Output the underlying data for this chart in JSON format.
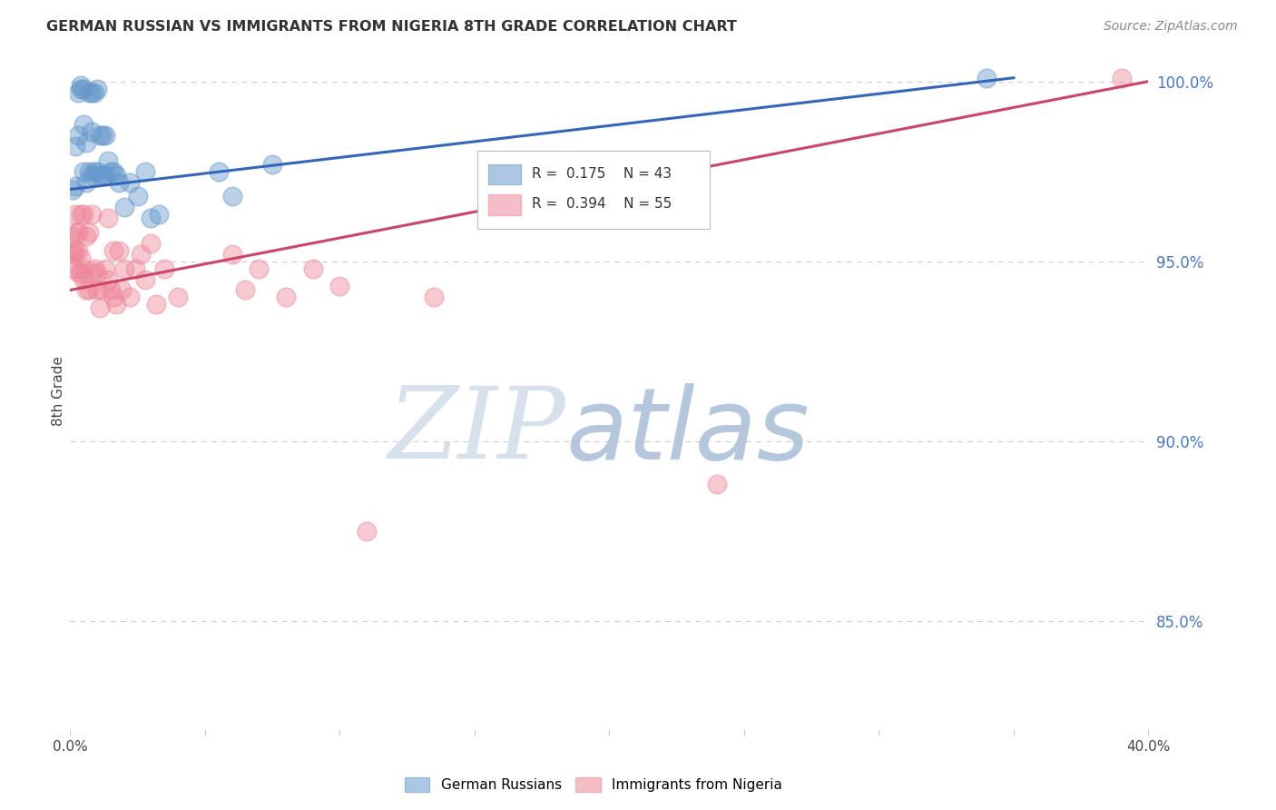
{
  "title": "GERMAN RUSSIAN VS IMMIGRANTS FROM NIGERIA 8TH GRADE CORRELATION CHART",
  "source": "Source: ZipAtlas.com",
  "ylabel": "8th Grade",
  "xlim": [
    0.0,
    0.4
  ],
  "ylim": [
    0.82,
    1.008
  ],
  "xticks": [
    0.0,
    0.05,
    0.1,
    0.15,
    0.2,
    0.25,
    0.3,
    0.35,
    0.4
  ],
  "xticklabels": [
    "0.0%",
    "",
    "",
    "",
    "",
    "",
    "",
    "",
    "40.0%"
  ],
  "yticks_right": [
    0.85,
    0.9,
    0.95,
    1.0
  ],
  "yticklabels_right": [
    "85.0%",
    "90.0%",
    "95.0%",
    "100.0%"
  ],
  "blue_R": 0.175,
  "blue_N": 43,
  "pink_R": 0.394,
  "pink_N": 55,
  "blue_color": "#6699CC",
  "pink_color": "#EE8899",
  "blue_line_color": "#3366BB",
  "pink_line_color": "#CC4466",
  "legend1": "German Russians",
  "legend2": "Immigrants from Nigeria",
  "blue_line_x0": 0.0,
  "blue_line_y0": 0.97,
  "blue_line_x1": 0.35,
  "blue_line_y1": 1.001,
  "pink_line_x0": 0.0,
  "pink_line_y0": 0.942,
  "pink_line_x1": 0.4,
  "pink_line_y1": 1.0,
  "blue_scatter_x": [
    0.001,
    0.002,
    0.002,
    0.003,
    0.003,
    0.004,
    0.004,
    0.005,
    0.005,
    0.005,
    0.006,
    0.006,
    0.007,
    0.007,
    0.008,
    0.008,
    0.008,
    0.009,
    0.009,
    0.01,
    0.01,
    0.011,
    0.011,
    0.012,
    0.012,
    0.013,
    0.013,
    0.014,
    0.015,
    0.016,
    0.017,
    0.018,
    0.02,
    0.022,
    0.025,
    0.028,
    0.03,
    0.033,
    0.055,
    0.06,
    0.075,
    0.17,
    0.34
  ],
  "blue_scatter_y": [
    0.97,
    0.971,
    0.982,
    0.985,
    0.997,
    0.998,
    0.999,
    0.998,
    0.988,
    0.975,
    0.972,
    0.983,
    0.997,
    0.975,
    0.997,
    0.986,
    0.974,
    0.997,
    0.975,
    0.998,
    0.975,
    0.974,
    0.985,
    0.974,
    0.985,
    0.974,
    0.985,
    0.978,
    0.975,
    0.975,
    0.974,
    0.972,
    0.965,
    0.972,
    0.968,
    0.975,
    0.962,
    0.963,
    0.975,
    0.968,
    0.977,
    0.963,
    1.001
  ],
  "pink_scatter_x": [
    0.001,
    0.001,
    0.001,
    0.002,
    0.002,
    0.002,
    0.002,
    0.003,
    0.003,
    0.003,
    0.004,
    0.004,
    0.004,
    0.005,
    0.005,
    0.005,
    0.006,
    0.006,
    0.007,
    0.007,
    0.008,
    0.008,
    0.009,
    0.01,
    0.01,
    0.011,
    0.012,
    0.013,
    0.014,
    0.014,
    0.015,
    0.016,
    0.016,
    0.017,
    0.018,
    0.019,
    0.02,
    0.022,
    0.024,
    0.026,
    0.028,
    0.03,
    0.032,
    0.035,
    0.04,
    0.06,
    0.065,
    0.07,
    0.08,
    0.09,
    0.1,
    0.11,
    0.135,
    0.24,
    0.39
  ],
  "pink_scatter_y": [
    0.952,
    0.953,
    0.957,
    0.948,
    0.953,
    0.958,
    0.963,
    0.947,
    0.953,
    0.958,
    0.947,
    0.951,
    0.963,
    0.945,
    0.948,
    0.963,
    0.942,
    0.957,
    0.942,
    0.958,
    0.947,
    0.963,
    0.948,
    0.942,
    0.947,
    0.937,
    0.942,
    0.948,
    0.945,
    0.962,
    0.942,
    0.94,
    0.953,
    0.938,
    0.953,
    0.942,
    0.948,
    0.94,
    0.948,
    0.952,
    0.945,
    0.955,
    0.938,
    0.948,
    0.94,
    0.952,
    0.942,
    0.948,
    0.94,
    0.948,
    0.943,
    0.875,
    0.94,
    0.888,
    1.001
  ],
  "background_color": "#FFFFFF",
  "grid_color": "#CCCCCC"
}
